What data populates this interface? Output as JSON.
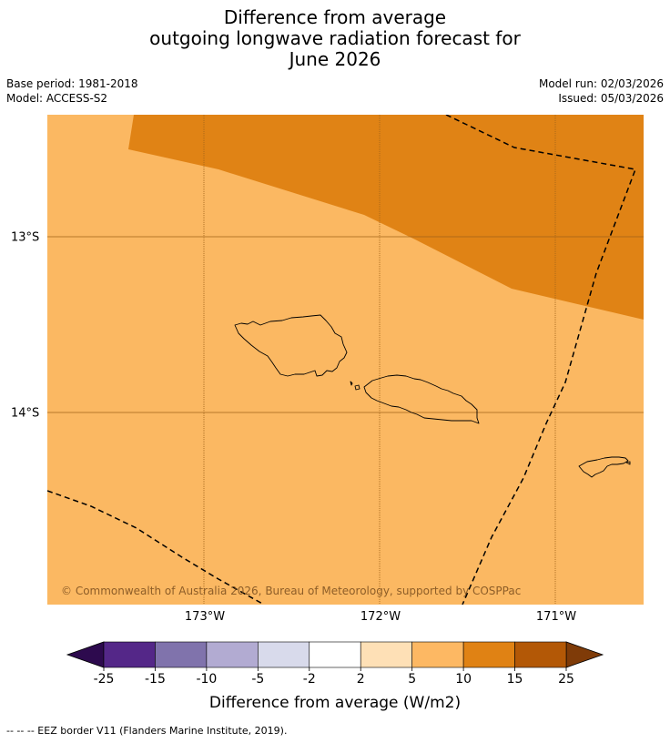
{
  "title": {
    "line1": "Difference from average",
    "line2": "outgoing longwave radiation forecast for",
    "line3": "June 2026"
  },
  "meta": {
    "base_period": "Base period: 1981-2018",
    "model": "Model: ACCESS-S2",
    "model_run": "Model run: 02/03/2026",
    "issued": "Issued: 05/03/2026"
  },
  "map": {
    "copyright": "© Commonwealth of Australia 2026, Bureau of Meteorology, supported by COSPPac",
    "lon_labels": [
      "173°W",
      "172°W",
      "171°W"
    ],
    "lat_labels": [
      "13°S",
      "14°S"
    ],
    "colors": {
      "base_fill": "#FBB862",
      "high_fill": "#E08315",
      "grid": "#A0621A",
      "eez": "#000000"
    }
  },
  "colorbar": {
    "label": "Difference from average (W/m2)",
    "ticks": [
      "-25",
      "-15",
      "-10",
      "-5",
      "-2",
      "2",
      "5",
      "10",
      "15",
      "25"
    ],
    "low_extend_color": "#2D0A4E",
    "high_extend_color": "#7F3B08",
    "colors": [
      "#542788",
      "#8073AC",
      "#B2ABD2",
      "#D8DAEB",
      "#FFFFFF",
      "#FEE0B6",
      "#FDB863",
      "#E08214",
      "#B35806"
    ]
  },
  "footnote": "--  --  -- EEZ border V11 (Flanders Marine Institute, 2019)."
}
